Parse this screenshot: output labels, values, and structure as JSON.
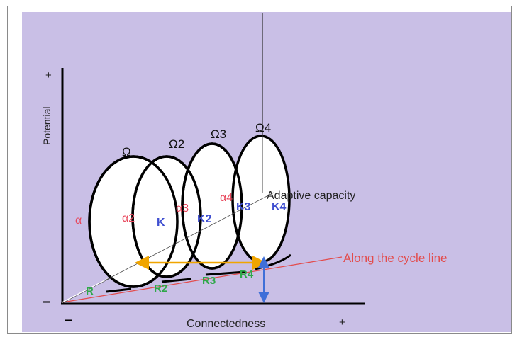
{
  "axes": {
    "y_label": "Potential",
    "x_label": "Connectedness",
    "y_plus": "+",
    "x_plus": "+",
    "origin_minus_y": "–",
    "origin_minus_x": "–"
  },
  "loops": [
    {
      "omega": "Ω",
      "alpha": "α",
      "k": "K",
      "r": "R"
    },
    {
      "omega": "Ω2",
      "alpha": "α2",
      "k": "K2",
      "r": "R2"
    },
    {
      "omega": "Ω3",
      "alpha": "α3",
      "k": "K3",
      "r": "R3"
    },
    {
      "omega": "Ω4",
      "alpha": "α4",
      "k": "K4",
      "r": "R4"
    }
  ],
  "annotations": {
    "adaptive_capacity": "Adaptive capacity",
    "cycle_line": "Along the cycle line"
  },
  "colors": {
    "background": "#c9bfe6",
    "alpha_labels": "#e8455a",
    "k_labels": "#3f4fd0",
    "r_labels": "#2fa84a",
    "cycle_line": "#e34b4b",
    "horizontal_arrow": "#f0a500",
    "vertical_arrow": "#3f6fd8",
    "axis": "#000000"
  }
}
